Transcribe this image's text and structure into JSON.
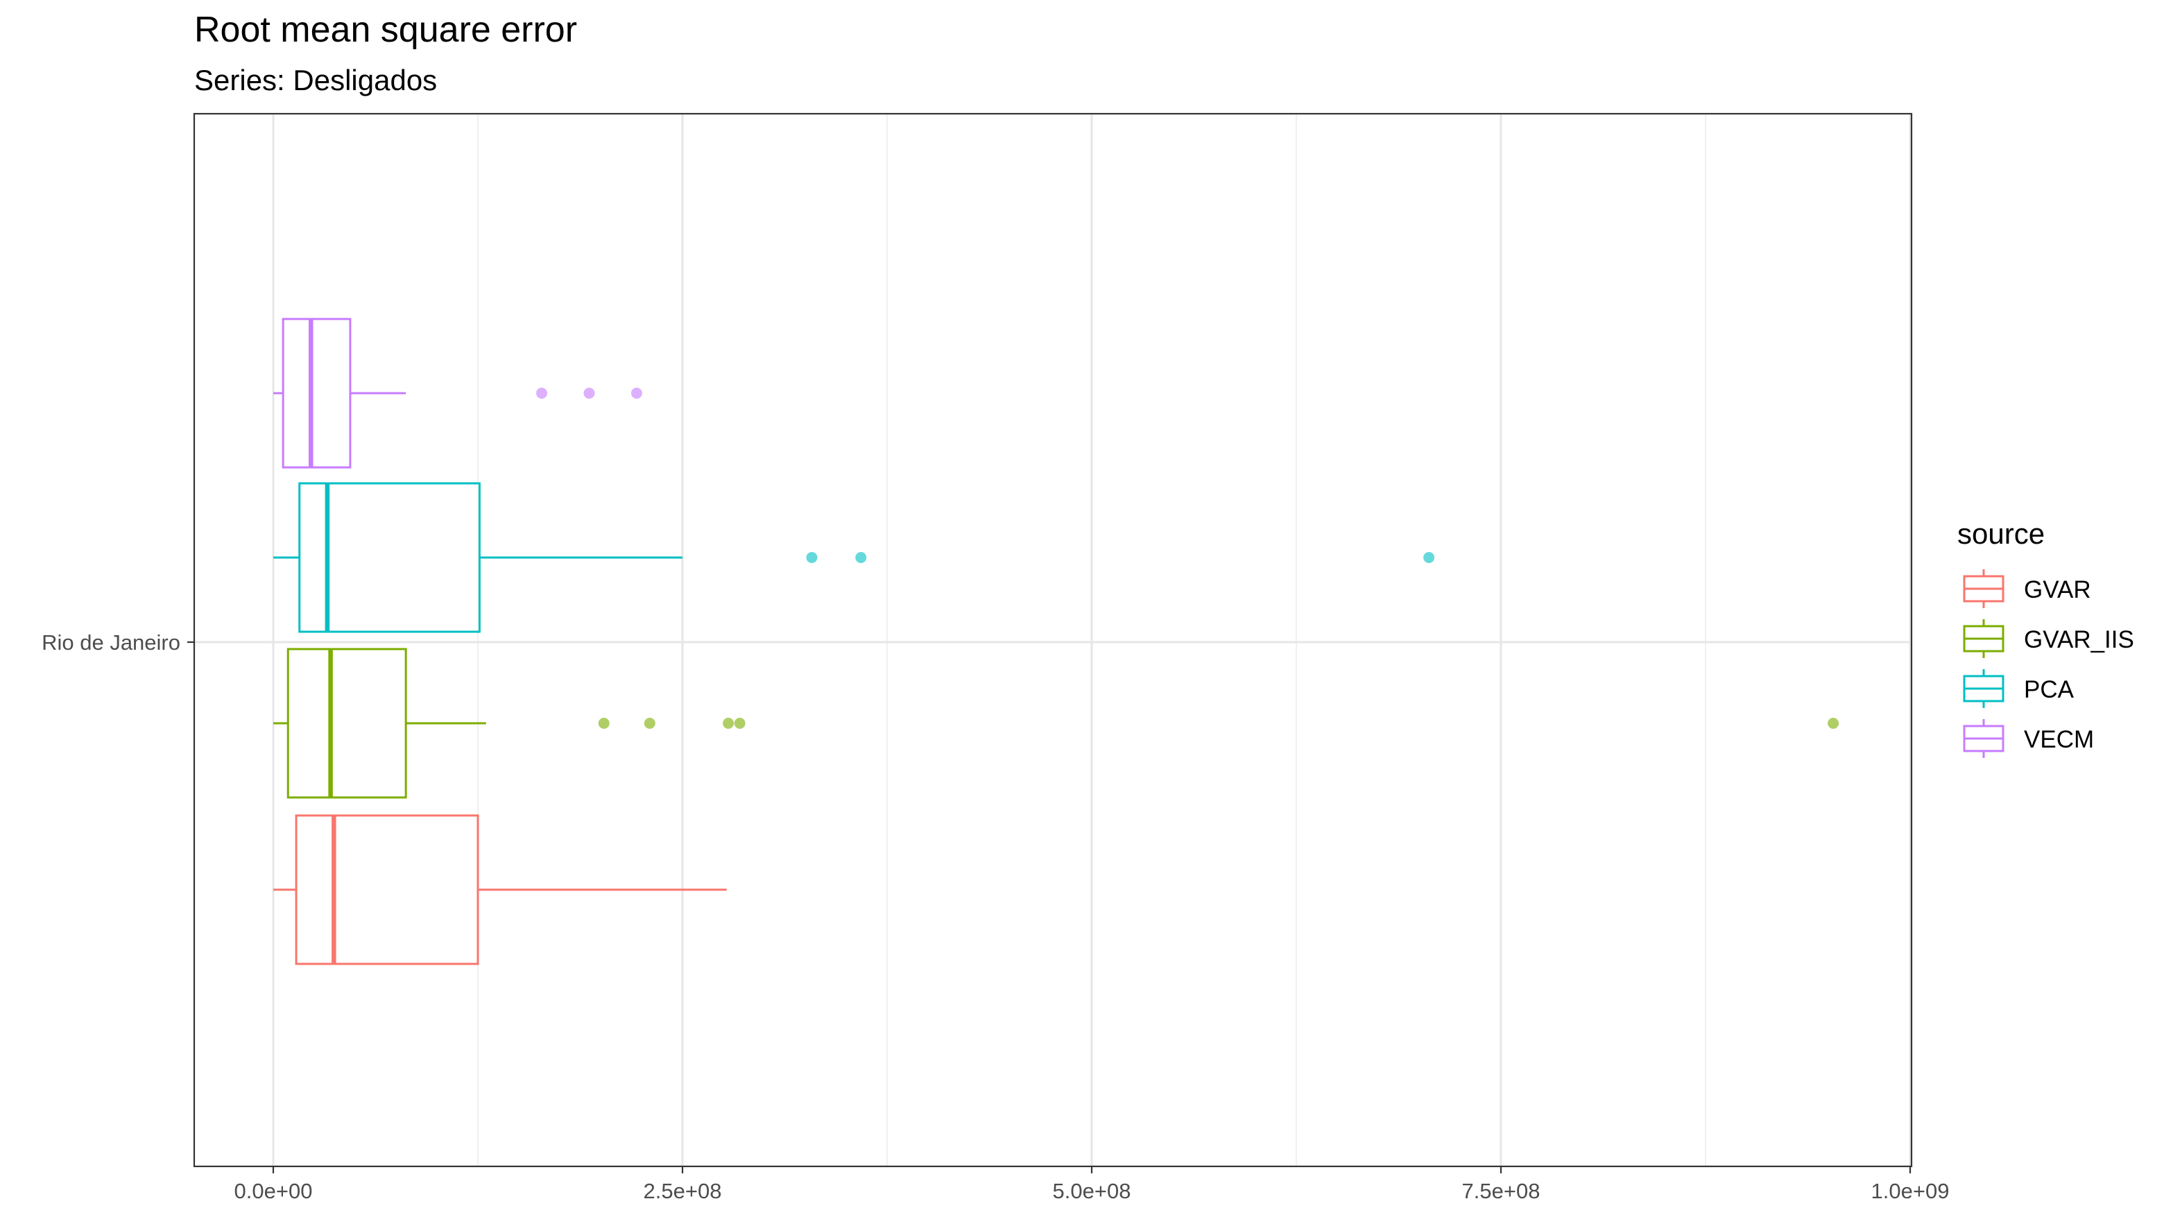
{
  "chart_data": {
    "type": "boxplot",
    "orientation": "horizontal",
    "title": "Root mean square error",
    "subtitle": "Series: Desligados",
    "xlabel": "",
    "ylabel": "",
    "xlim": [
      -48000000.0,
      1000000000.0
    ],
    "x_ticks": [
      0,
      250000000,
      500000000,
      750000000,
      1000000000
    ],
    "x_tick_labels": [
      "0.0e+00",
      "2.5e+08",
      "5.0e+08",
      "7.5e+08",
      "1.0e+09"
    ],
    "x_minor_ticks": [
      125000000,
      375000000,
      625000000,
      875000000
    ],
    "categories": [
      "Rio de Janeiro"
    ],
    "grid": true,
    "legend": {
      "title": "source",
      "position": "right",
      "entries": [
        {
          "label": "GVAR",
          "color": "#F8766D"
        },
        {
          "label": "GVAR_IIS",
          "color": "#7CAE00"
        },
        {
          "label": "PCA",
          "color": "#00BFC4"
        },
        {
          "label": "VECM",
          "color": "#C77CFF"
        }
      ]
    },
    "series": [
      {
        "name": "GVAR",
        "color": "#F8766D",
        "whisker_low": 0,
        "q1": 14000000,
        "median": 37000000,
        "q3": 125000000,
        "whisker_high": 277000000,
        "outliers": []
      },
      {
        "name": "GVAR_IIS",
        "color": "#7CAE00",
        "whisker_low": 0,
        "q1": 9000000,
        "median": 35000000,
        "q3": 81000000,
        "whisker_high": 130000000,
        "outliers": [
          202000000,
          230000000,
          278000000,
          285000000,
          953000000
        ]
      },
      {
        "name": "PCA",
        "color": "#00BFC4",
        "whisker_low": 0,
        "q1": 16000000,
        "median": 33000000,
        "q3": 126000000,
        "whisker_high": 250000000,
        "outliers": [
          329000000,
          359000000,
          706000000
        ]
      },
      {
        "name": "VECM",
        "color": "#C77CFF",
        "whisker_low": 0,
        "q1": 6000000,
        "median": 23000000,
        "q3": 47000000,
        "whisker_high": 81000000,
        "outliers": [
          164000000,
          193000000,
          222000000
        ]
      }
    ]
  }
}
